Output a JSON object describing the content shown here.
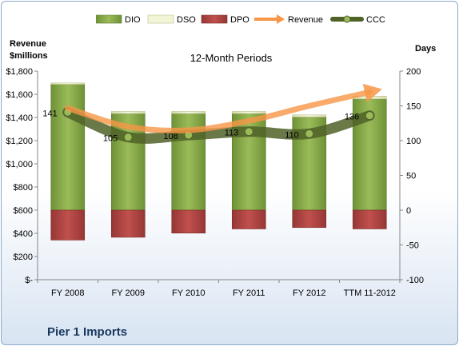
{
  "chart_data": {
    "type": "bar",
    "title": "12-Month Periods",
    "categories": [
      "FY 2008",
      "FY 2009",
      "FY 2010",
      "FY 2011",
      "FY 2012",
      "TTM 11-2012"
    ],
    "y_left": {
      "label_line1": "Revenue",
      "label_line2": "$millions",
      "range": [
        0,
        1800
      ],
      "ticks": [
        0,
        200,
        400,
        600,
        800,
        1000,
        1200,
        1400,
        1600,
        1800
      ]
    },
    "y_right": {
      "label": "Days",
      "range": [
        -100,
        200
      ],
      "ticks": [
        -100,
        -50,
        0,
        50,
        100,
        150,
        200
      ]
    },
    "bar_series": [
      {
        "name": "DIO",
        "axis": "right",
        "color": "#8cb04a",
        "values": [
          181,
          139,
          139,
          139,
          134,
          160
        ]
      },
      {
        "name": "DSO",
        "axis": "right",
        "color": "#f2f5d6",
        "values": [
          2,
          3,
          3,
          3,
          3,
          4
        ]
      },
      {
        "name": "DPO",
        "axis": "right",
        "color": "#c0504d",
        "values": [
          -43,
          -39,
          -33,
          -27,
          -25,
          -27
        ]
      }
    ],
    "line_series": [
      {
        "name": "Revenue",
        "axis": "left",
        "color": "#f79646",
        "values": [
          1480,
          1320,
          1290,
          1370,
          1500,
          1620
        ]
      },
      {
        "name": "CCC",
        "axis": "right",
        "color": "#4f6228",
        "values": [
          141,
          105,
          108,
          113,
          110,
          136
        ],
        "labels": [
          "141",
          "105",
          "108",
          "113",
          "110",
          "136"
        ]
      }
    ],
    "legend_position": "top",
    "grid": false
  },
  "footer": {
    "company": "Pier 1 Imports"
  },
  "colors": {
    "text": "#000000",
    "title": "#17375e",
    "frame_border": "#8ea9c8"
  }
}
